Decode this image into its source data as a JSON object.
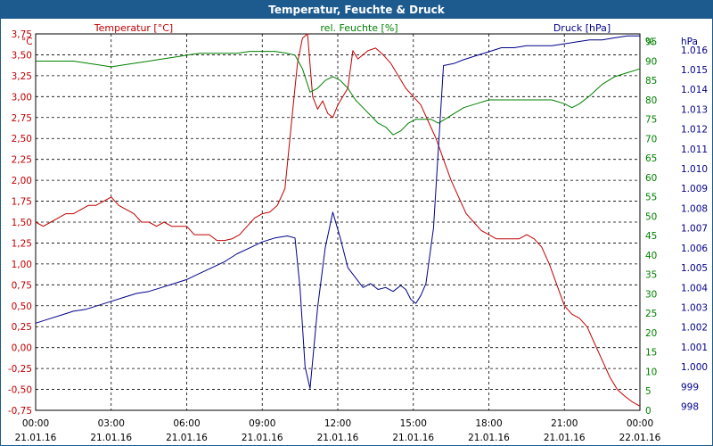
{
  "chart_data": {
    "type": "line",
    "title": "Temperatur, Feuchte & Druck",
    "x_ticks": [
      {
        "time": "00:00",
        "date": "21.01.16"
      },
      {
        "time": "03:00",
        "date": "21.01.16"
      },
      {
        "time": "06:00",
        "date": "21.01.16"
      },
      {
        "time": "09:00",
        "date": "21.01.16"
      },
      {
        "time": "12:00",
        "date": "21.01.16"
      },
      {
        "time": "15:00",
        "date": "21.01.16"
      },
      {
        "time": "18:00",
        "date": "21.01.16"
      },
      {
        "time": "21:00",
        "date": "21.01.16"
      },
      {
        "time": "00:00",
        "date": "22.01.16"
      }
    ],
    "x_range_hours": [
      0,
      24
    ],
    "grid": true,
    "axes": {
      "temperature": {
        "label": "Temperatur [°C]",
        "unit": "°C",
        "side": "left",
        "color": "#c00000",
        "range": [
          -0.75,
          3.75
        ],
        "ticks": [
          "3,75",
          "3,50",
          "3,25",
          "3,00",
          "2,75",
          "2,50",
          "2,25",
          "2,00",
          "1,75",
          "1,50",
          "1,25",
          "1,00",
          "0,75",
          "0,50",
          "0,25",
          "0,00",
          "-0,25",
          "-0,50",
          "-0,75"
        ]
      },
      "humidity": {
        "label": "rel. Feuchte [%]",
        "unit": "%",
        "side": "right-inner",
        "color": "#008000",
        "range": [
          0,
          97
        ],
        "ticks": [
          "95",
          "90",
          "85",
          "80",
          "75",
          "70",
          "65",
          "60",
          "55",
          "50",
          "45",
          "40",
          "35",
          "30",
          "25",
          "20",
          "15",
          "10",
          "5",
          "0"
        ]
      },
      "pressure": {
        "label": "Druck [hPa]",
        "unit": "hPa",
        "side": "right-outer",
        "color": "#00008b",
        "range": [
          997.8,
          1016.8
        ],
        "ticks": [
          "1.016",
          "1.015",
          "1.014",
          "1.013",
          "1.012",
          "1.011",
          "1.010",
          "1.009",
          "1.008",
          "1.007",
          "1.006",
          "1.005",
          "1.004",
          "1.003",
          "1.002",
          "1.001",
          "1.000",
          "999",
          "998"
        ]
      }
    },
    "series": [
      {
        "name": "Temperatur [°C]",
        "axis": "temperature",
        "color": "#c00000",
        "x": [
          0,
          0.3,
          0.6,
          0.9,
          1.2,
          1.5,
          1.8,
          2.1,
          2.4,
          2.7,
          3.0,
          3.3,
          3.6,
          3.9,
          4.2,
          4.5,
          4.8,
          5.1,
          5.4,
          5.7,
          6.0,
          6.3,
          6.6,
          6.9,
          7.2,
          7.5,
          7.8,
          8.1,
          8.4,
          8.7,
          9.0,
          9.3,
          9.6,
          9.9,
          10.2,
          10.4,
          10.6,
          10.8,
          11.0,
          11.2,
          11.4,
          11.6,
          11.8,
          12.0,
          12.2,
          12.4,
          12.6,
          12.8,
          13.0,
          13.2,
          13.5,
          13.8,
          14.1,
          14.4,
          14.7,
          15.0,
          15.3,
          15.6,
          15.9,
          16.2,
          16.5,
          16.8,
          17.1,
          17.4,
          17.7,
          18.0,
          18.3,
          18.6,
          18.9,
          19.2,
          19.5,
          19.8,
          20.1,
          20.4,
          20.7,
          21.0,
          21.3,
          21.6,
          21.9,
          22.2,
          22.5,
          22.8,
          23.1,
          23.4,
          23.7,
          24.0
        ],
        "values": [
          1.5,
          1.45,
          1.5,
          1.55,
          1.6,
          1.6,
          1.65,
          1.7,
          1.7,
          1.75,
          1.8,
          1.7,
          1.65,
          1.6,
          1.5,
          1.5,
          1.45,
          1.5,
          1.45,
          1.45,
          1.45,
          1.35,
          1.35,
          1.35,
          1.28,
          1.28,
          1.3,
          1.35,
          1.45,
          1.55,
          1.6,
          1.62,
          1.7,
          1.9,
          2.8,
          3.4,
          3.7,
          3.75,
          3.0,
          2.85,
          2.95,
          2.8,
          2.75,
          2.9,
          3.0,
          3.1,
          3.55,
          3.45,
          3.5,
          3.55,
          3.58,
          3.5,
          3.4,
          3.25,
          3.1,
          3.0,
          2.9,
          2.7,
          2.5,
          2.25,
          2.0,
          1.8,
          1.6,
          1.5,
          1.4,
          1.35,
          1.3,
          1.3,
          1.3,
          1.3,
          1.35,
          1.3,
          1.2,
          1.0,
          0.75,
          0.5,
          0.4,
          0.35,
          0.25,
          0.05,
          -0.15,
          -0.35,
          -0.5,
          -0.58,
          -0.65,
          -0.7
        ]
      },
      {
        "name": "rel. Feuchte [%]",
        "axis": "humidity",
        "color": "#008000",
        "x": [
          0,
          0.5,
          1.0,
          1.5,
          2.0,
          2.5,
          3.0,
          3.5,
          4.0,
          4.5,
          5.0,
          5.5,
          6.0,
          6.5,
          7.0,
          7.5,
          8.0,
          8.5,
          9.0,
          9.5,
          10.0,
          10.3,
          10.6,
          10.9,
          11.2,
          11.5,
          11.8,
          12.1,
          12.4,
          12.7,
          13.0,
          13.3,
          13.6,
          13.9,
          14.2,
          14.5,
          14.8,
          15.1,
          15.4,
          15.7,
          16.0,
          16.5,
          17.0,
          17.5,
          18.0,
          18.5,
          19.0,
          19.5,
          20.0,
          20.5,
          21.0,
          21.3,
          21.6,
          22.0,
          22.5,
          23.0,
          23.5,
          24.0
        ],
        "values": [
          90,
          90,
          90,
          90,
          89.5,
          89,
          88.5,
          89,
          89.5,
          90,
          90.5,
          91,
          91.5,
          92,
          92,
          92,
          92,
          92.5,
          92.5,
          92.5,
          92,
          91.5,
          88,
          82,
          83,
          85,
          86,
          85,
          83,
          80,
          78,
          76,
          74,
          73,
          71,
          72,
          74,
          75,
          75,
          75,
          74,
          76,
          78,
          79,
          80,
          80,
          80,
          80,
          80,
          80,
          79,
          78,
          79,
          81,
          84,
          86,
          87,
          88
        ]
      },
      {
        "name": "Druck [hPa]",
        "axis": "pressure",
        "color": "#00008b",
        "x": [
          0,
          0.5,
          1.0,
          1.5,
          2.0,
          2.5,
          3.0,
          3.5,
          4.0,
          4.5,
          5.0,
          5.5,
          6.0,
          6.5,
          7.0,
          7.5,
          8.0,
          8.5,
          9.0,
          9.5,
          10.0,
          10.3,
          10.5,
          10.7,
          10.9,
          11.2,
          11.5,
          11.8,
          12.1,
          12.4,
          12.7,
          13.0,
          13.3,
          13.6,
          13.9,
          14.2,
          14.5,
          14.7,
          14.9,
          15.1,
          15.3,
          15.5,
          15.8,
          16.2,
          16.6,
          17.0,
          17.5,
          18.0,
          18.5,
          19.0,
          19.5,
          20.0,
          20.5,
          21.0,
          21.5,
          22.0,
          22.5,
          23.0,
          23.5,
          24.0
        ],
        "values": [
          1002.2,
          1002.4,
          1002.6,
          1002.8,
          1002.9,
          1003.1,
          1003.3,
          1003.5,
          1003.7,
          1003.8,
          1004.0,
          1004.2,
          1004.4,
          1004.7,
          1005.0,
          1005.3,
          1005.7,
          1006.0,
          1006.3,
          1006.5,
          1006.6,
          1006.5,
          1004.0,
          1000.0,
          998.9,
          1003.0,
          1006.0,
          1007.8,
          1006.5,
          1005.0,
          1004.5,
          1004.0,
          1004.2,
          1003.9,
          1004.0,
          1003.8,
          1004.1,
          1003.9,
          1003.4,
          1003.2,
          1003.6,
          1004.2,
          1007.0,
          1015.2,
          1015.3,
          1015.5,
          1015.7,
          1015.9,
          1016.1,
          1016.1,
          1016.2,
          1016.2,
          1016.2,
          1016.3,
          1016.4,
          1016.5,
          1016.5,
          1016.6,
          1016.7,
          1016.7
        ]
      }
    ]
  }
}
